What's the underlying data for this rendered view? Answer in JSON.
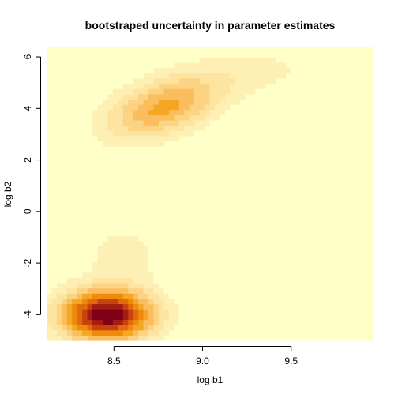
{
  "chart_data": {
    "type": "heatmap",
    "title": "bootstraped uncertainty in parameter estimates",
    "xlabel": "log b1",
    "ylabel": "log b2",
    "xlim": [
      8.12,
      9.96
    ],
    "ylim": [
      -5.0,
      6.4
    ],
    "x_ticks": [
      8.5,
      9.0,
      9.5
    ],
    "x_tick_labels": [
      "8.5",
      "9.0",
      "9.5"
    ],
    "y_ticks": [
      -4,
      -2,
      0,
      2,
      4,
      6
    ],
    "y_tick_labels": [
      "-4",
      "-2",
      "0",
      "2",
      "4",
      "6"
    ],
    "grid": false,
    "legend": "none",
    "color_scale": [
      "#FFFFC8",
      "#FEF0B4",
      "#FDE4A0",
      "#FCD382",
      "#FABE5F",
      "#F5A623",
      "#EE8A0C",
      "#E16A0B",
      "#C8420D",
      "#A51C12",
      "#800019"
    ],
    "density_components": [
      {
        "center": [
          8.46,
          -4.0
        ],
        "spread": [
          0.17,
          0.65
        ],
        "weight": 1.0,
        "correlation": 0.0
      },
      {
        "center": [
          8.78,
          4.05
        ],
        "spread": [
          0.21,
          0.8
        ],
        "weight": 0.42,
        "correlation": 0.45
      },
      {
        "center": [
          9.25,
          5.4
        ],
        "spread": [
          0.3,
          0.65
        ],
        "weight": 0.08,
        "correlation": 0.3
      },
      {
        "center": [
          8.55,
          -1.8
        ],
        "spread": [
          0.14,
          0.9
        ],
        "weight": 0.1,
        "correlation": 0.0
      }
    ]
  }
}
